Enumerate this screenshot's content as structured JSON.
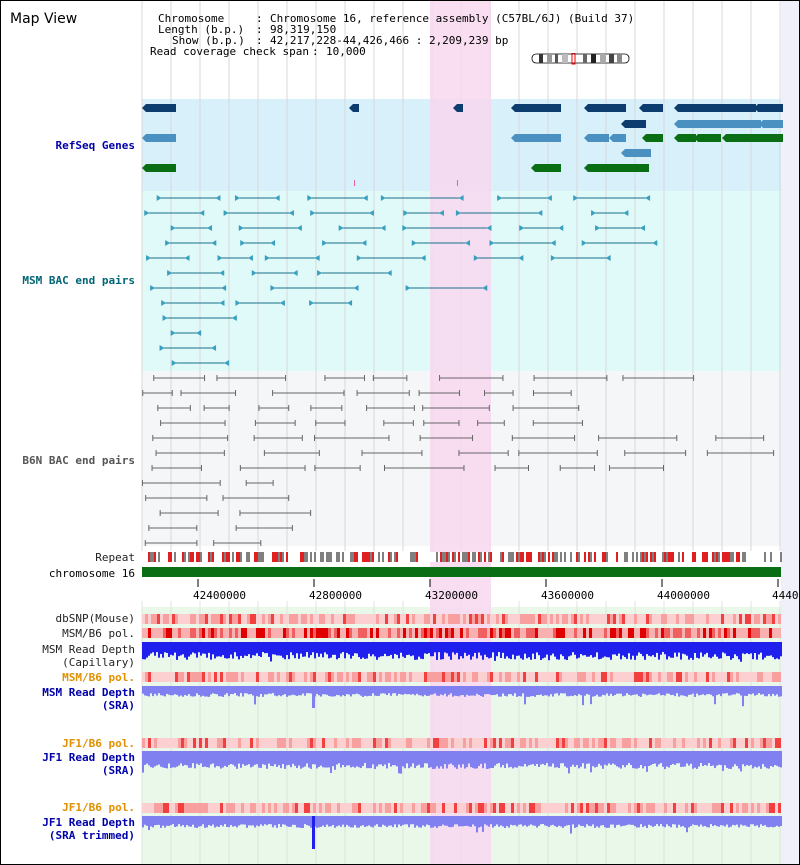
{
  "header": {
    "title": "Map View",
    "chromosome_key": "Chromosome",
    "chromosome_value": "Chromosome 16, reference assembly (C57BL/6J) (Build 37)",
    "length_key": "Length (b.p.)",
    "length_value": "98,319,150",
    "show_key": "Show (b.p.)",
    "show_value": "42,217,228-44,426,466 : 2,209,239 bp",
    "span_key": "Read coverage check span",
    "span_value": "10,000"
  },
  "tracks": {
    "refseq": "RefSeq Genes",
    "msm_bac": "MSM BAC end pairs",
    "b6n_bac": "B6N BAC end pairs",
    "repeat": "Repeat",
    "chromosome": "chromosome 16",
    "dbsnp": "dbSNP(Mouse)",
    "msm_b6_pol": "MSM/B6 pol.",
    "msm_depth_cap_1": "MSM Read Depth",
    "msm_depth_cap_2": "(Capillary)",
    "msm_b6_pol2": "MSM/B6 pol.",
    "msm_depth_sra_1": "MSM Read Depth",
    "msm_depth_sra_2": "(SRA)",
    "jf1_b6_pol": "JF1/B6 pol.",
    "jf1_depth_sra_1": "JF1 Read Depth",
    "jf1_depth_sra_2": "(SRA)",
    "jf1_b6_pol2": "JF1/B6 pol.",
    "jf1_depth_trim_1": "JF1 Read Depth",
    "jf1_depth_trim_2": "(SRA trimmed)"
  },
  "axis": {
    "ticks": [
      "42400000",
      "42800000",
      "43200000",
      "43600000",
      "44000000",
      "4440"
    ]
  },
  "colors": {
    "highlight": "#f8d8f0",
    "refseq_bg": "#d8f0fa",
    "msm_bg": "#e0fafa",
    "b6n_bg": "#f4f6f8",
    "gene_dark": "#0d3d6e",
    "gene_mid": "#4a90c0",
    "gene_green": "#0a6e14",
    "chrom_green": "#0a6e14",
    "depth_blue": "#2020ee",
    "depth_light": "#8080f0"
  }
}
